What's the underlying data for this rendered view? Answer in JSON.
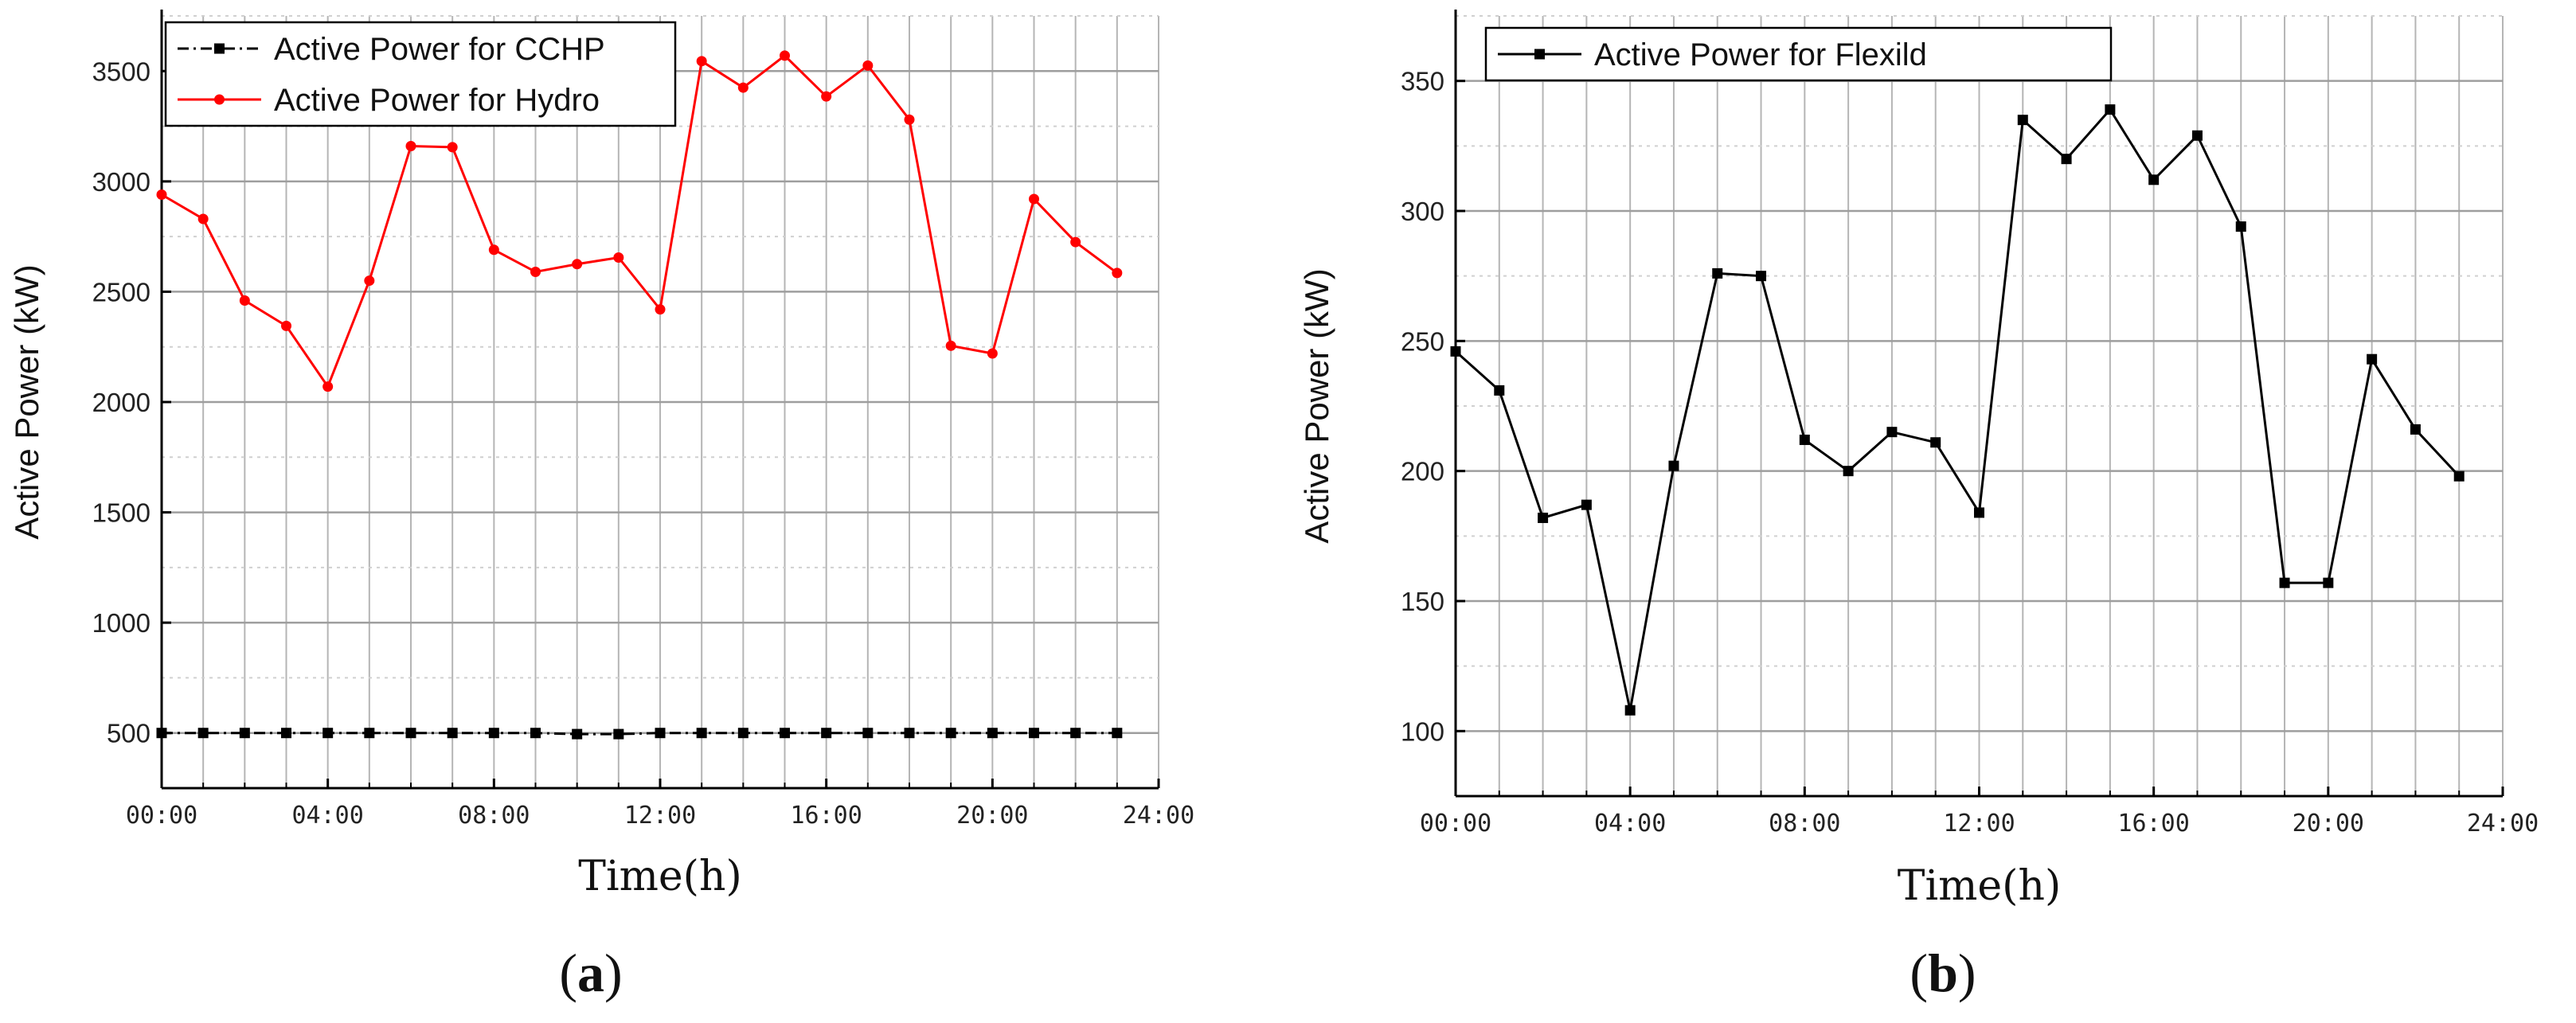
{
  "chart_data": [
    {
      "type": "line",
      "panel_label": "a",
      "xlabel": "Time(h)",
      "ylabel": "Active Power (kW)",
      "x_tick_labels": [
        "00:00",
        "04:00",
        "08:00",
        "12:00",
        "16:00",
        "20:00",
        "24:00"
      ],
      "x_ticks": [
        0,
        4,
        8,
        12,
        16,
        20,
        24
      ],
      "xlim": [
        0,
        24
      ],
      "ylim": [
        250,
        3750
      ],
      "y_ticks": [
        500,
        1000,
        1500,
        2000,
        2500,
        3000,
        3500
      ],
      "grid": true,
      "legend_position": "top-left",
      "x": [
        0,
        1,
        2,
        3,
        4,
        5,
        6,
        7,
        8,
        9,
        10,
        11,
        12,
        13,
        14,
        15,
        16,
        17,
        18,
        19,
        20,
        21,
        22,
        23
      ],
      "series": [
        {
          "name": "Active Power for CCHP",
          "color": "#000000",
          "line_style": "dash-dot",
          "marker": "square",
          "values": [
            500,
            500,
            500,
            500,
            500,
            500,
            500,
            500,
            500,
            500,
            495,
            495,
            500,
            500,
            500,
            500,
            500,
            500,
            500,
            500,
            500,
            500,
            500,
            500
          ]
        },
        {
          "name": "Active Power for Hydro",
          "color": "#ff0000",
          "line_style": "solid",
          "marker": "circle",
          "values": [
            2940,
            2830,
            2460,
            2345,
            2070,
            2550,
            3160,
            3155,
            2690,
            2590,
            2625,
            2655,
            2420,
            3545,
            3425,
            3570,
            3385,
            3525,
            3280,
            2255,
            2220,
            2920,
            2725,
            2585
          ]
        }
      ]
    },
    {
      "type": "line",
      "panel_label": "b",
      "xlabel": "Time(h)",
      "ylabel": "Active Power (kW)",
      "x_tick_labels": [
        "00:00",
        "04:00",
        "08:00",
        "12:00",
        "16:00",
        "20:00",
        "24:00"
      ],
      "x_ticks": [
        0,
        4,
        8,
        12,
        16,
        20,
        24
      ],
      "xlim": [
        0,
        24
      ],
      "ylim": [
        75,
        375
      ],
      "y_ticks": [
        100,
        150,
        200,
        250,
        300,
        350
      ],
      "grid": true,
      "legend_position": "top-left",
      "x": [
        0,
        1,
        2,
        3,
        4,
        5,
        6,
        7,
        8,
        9,
        10,
        11,
        12,
        13,
        14,
        15,
        16,
        17,
        18,
        19,
        20,
        21,
        22,
        23
      ],
      "series": [
        {
          "name": "Active Power for Flexild",
          "color": "#000000",
          "line_style": "solid",
          "marker": "square",
          "values": [
            246,
            231,
            182,
            187,
            108,
            202,
            276,
            275,
            212,
            200,
            215,
            211,
            184,
            335,
            320,
            339,
            312,
            329,
            294,
            157,
            157,
            243,
            216,
            198
          ]
        }
      ]
    }
  ]
}
